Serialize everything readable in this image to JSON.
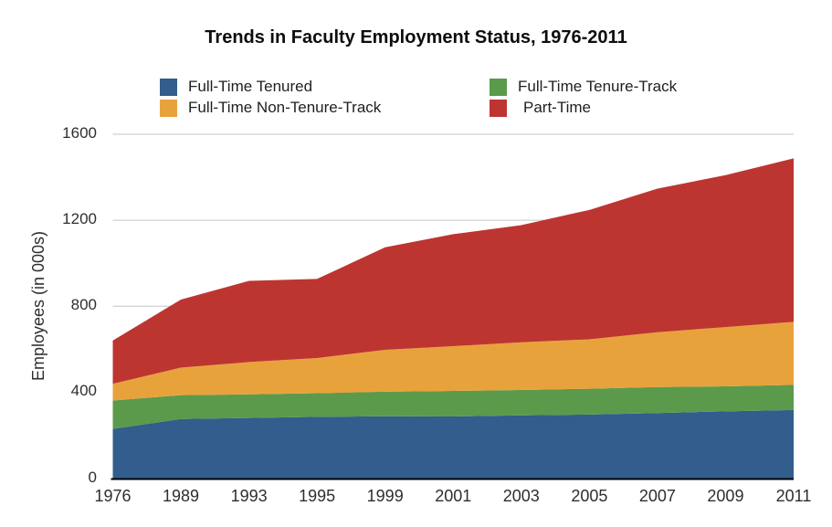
{
  "page": {
    "background": "#ffffff"
  },
  "chart_data": {
    "type": "area",
    "stacked": true,
    "title": "Trends in Faculty Employment Status, 1976-2011",
    "ylabel": "Employees (in 000s)",
    "xlabel": "",
    "categories": [
      "1976",
      "1989",
      "1993",
      "1995",
      "1999",
      "2001",
      "2003",
      "2005",
      "2007",
      "2009",
      "2011"
    ],
    "series": [
      {
        "name": "Full-Time Tenured",
        "color": "#325D8C",
        "values": [
          229,
          275,
          280,
          285,
          288,
          287,
          292,
          296,
          303,
          311,
          317
        ]
      },
      {
        "name": "Full-Time Tenure-Track",
        "color": "#5B9A4B",
        "values": [
          132,
          111,
          110,
          110,
          114,
          119,
          118,
          120,
          121,
          116,
          117
        ]
      },
      {
        "name": "Full-Time Non-Tenure-Track",
        "color": "#E8A23C",
        "values": [
          78,
          128,
          150,
          164,
          195,
          208,
          222,
          230,
          255,
          276,
          293
        ]
      },
      {
        "name": "Part-Time",
        "color": "#BD3531",
        "values": [
          201,
          317,
          378,
          368,
          477,
          521,
          545,
          602,
          668,
          707,
          761
        ]
      }
    ],
    "cumulative_tops_note": "stack order bottom-to-top matches series order",
    "ylim": [
      0,
      1600
    ],
    "y_ticks": [
      0,
      400,
      800,
      1200,
      1600
    ],
    "grid": true,
    "grid_color": "#C6C6C6",
    "axis_line_color": "#000000",
    "legend_position": "top",
    "legend_columns": 2,
    "text_color": "#2e2e2e"
  }
}
